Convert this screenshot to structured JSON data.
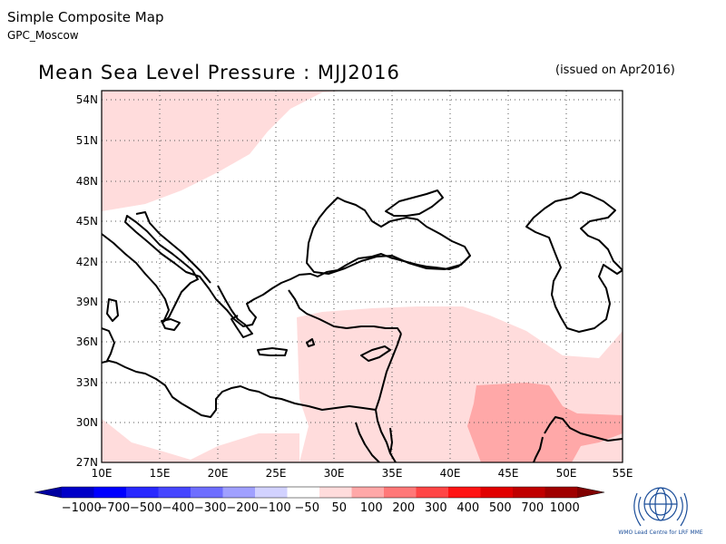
{
  "header": {
    "title": "Simple Composite Map",
    "subtitle": "GPC_Moscow"
  },
  "map": {
    "title": "Mean Sea Level Pressure : MJJ2016",
    "issued": "(issued on Apr2016)",
    "lon_labels": [
      "10E",
      "15E",
      "20E",
      "25E",
      "30E",
      "35E",
      "40E",
      "45E",
      "50E",
      "55E"
    ],
    "lat_labels": [
      "54N",
      "51N",
      "48N",
      "45N",
      "42N",
      "39N",
      "36N",
      "33N",
      "30N",
      "27N"
    ]
  },
  "legend": {
    "labels": [
      "−1000",
      "−700",
      "−500",
      "−400",
      "−300",
      "−200",
      "−100",
      "−50",
      "50",
      "100",
      "200",
      "300",
      "400",
      "500",
      "700",
      "1000"
    ],
    "colors": [
      "#0000c8",
      "#0000ff",
      "#2828ff",
      "#4646ff",
      "#6e6eff",
      "#a0a0ff",
      "#d2d2ff",
      "#ffffff",
      "#ffdcdc",
      "#ffa8a8",
      "#ff7878",
      "#ff4646",
      "#ff1414",
      "#e10000",
      "#c00000",
      "#a00000"
    ]
  },
  "logo": {
    "text": "WMO Lead Centre for LRF MME"
  }
}
